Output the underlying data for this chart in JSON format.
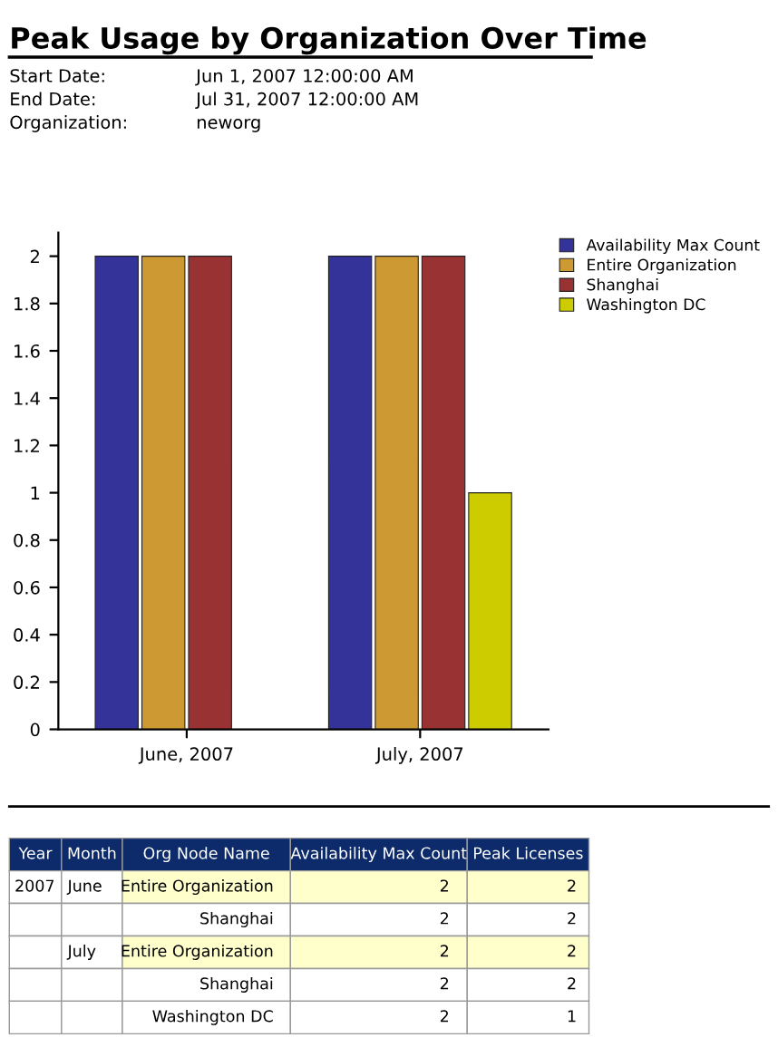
{
  "chart_data": [
    {
      "type": "bar",
      "title": "Peak Usage by Organization Over Time",
      "annotations": [
        "Start Date:",
        "Jun 1, 2007 12:00:00 AM",
        "End Date:",
        "Jul 31, 2007 12:00:00 AM",
        "Organization:",
        "neworg"
      ],
      "categories": [
        "June, 2007",
        "July, 2007"
      ],
      "series": [
        {
          "name": "Availability Max Count",
          "color": "#333399",
          "values": [
            2,
            2
          ]
        },
        {
          "name": "Entire Organization",
          "color": "#cc9933",
          "values": [
            2,
            2
          ]
        },
        {
          "name": "Shanghai",
          "color": "#993333",
          "values": [
            2,
            2
          ]
        },
        {
          "name": "Washington DC",
          "color": "#cccc00",
          "values": [
            null,
            1
          ]
        }
      ],
      "ylim": [
        0,
        2.1
      ],
      "yticks": [
        0,
        0.2,
        0.4,
        0.6,
        0.8,
        1,
        1.2,
        1.4,
        1.6,
        1.8,
        2
      ],
      "grid": false,
      "legend": "top right"
    },
    {
      "type": "other",
      "annotations": [
        "Year",
        "Month",
        "Org Node Name",
        "Availability Max Count",
        "Peak Licenses",
        "2007",
        "June",
        "Entire Organization",
        "2",
        "2",
        null,
        null,
        "Shanghai",
        "2",
        "2",
        null,
        "July",
        "Entire Organization",
        "2",
        "2",
        null,
        null,
        "Shanghai",
        "2",
        "2",
        null,
        null,
        "Washington DC",
        "2",
        "1"
      ]
    }
  ]
}
